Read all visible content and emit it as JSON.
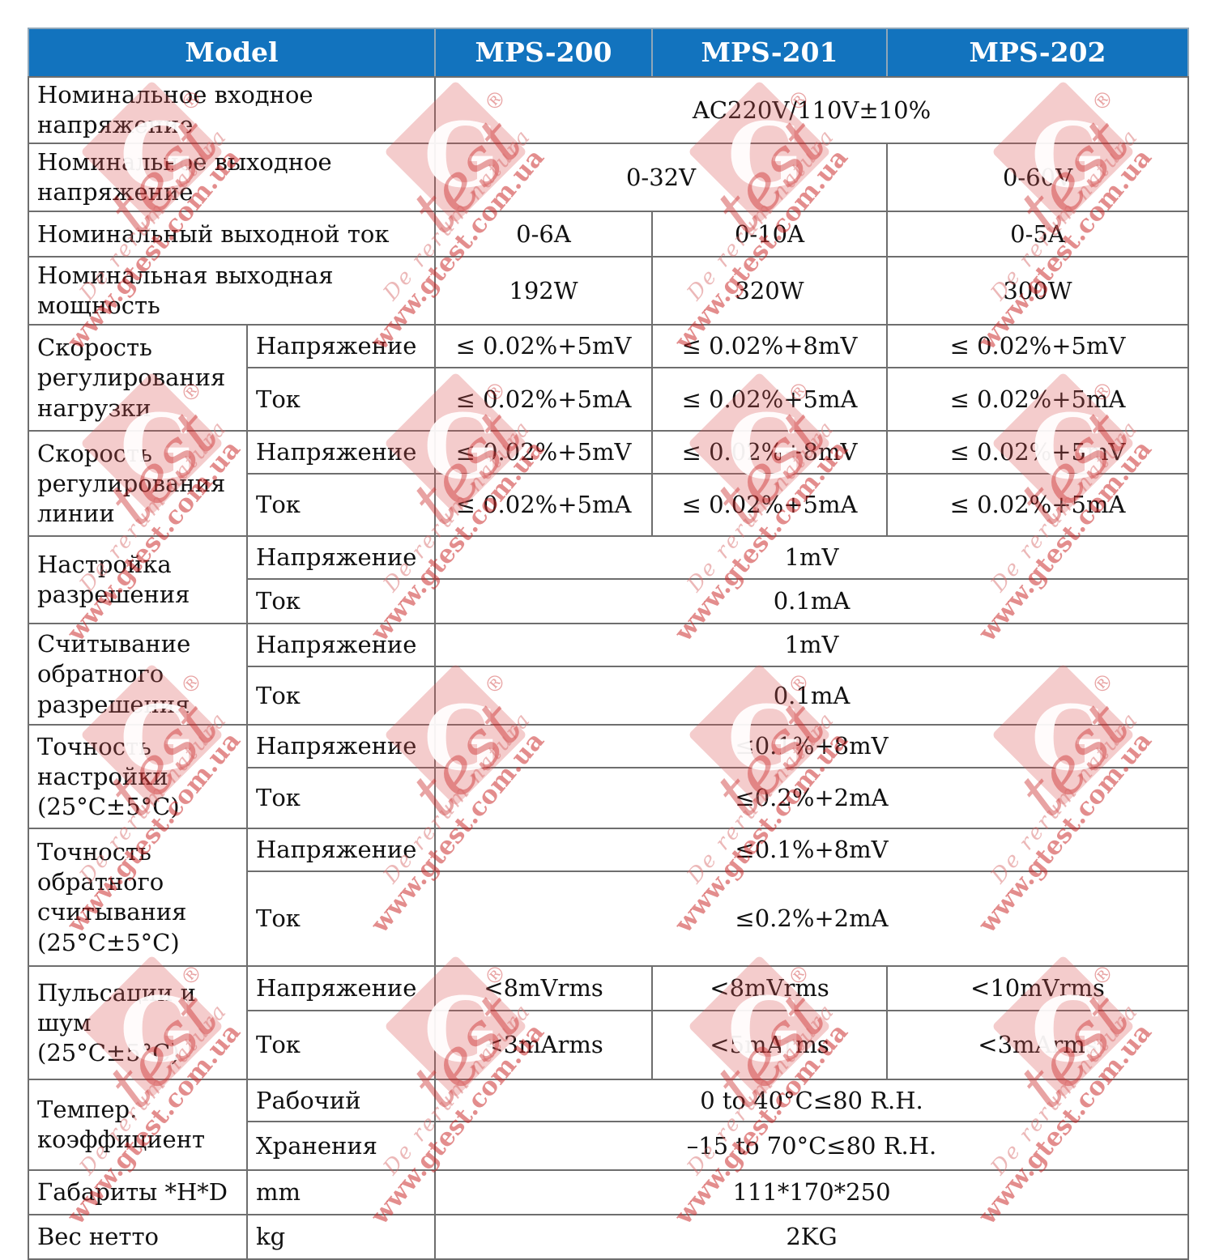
{
  "header": {
    "model": "Model",
    "m200": "MPS-200",
    "m201": "MPS-201",
    "m202": "MPS-202"
  },
  "sublabels": {
    "voltage": "Напряжение",
    "current": "Ток"
  },
  "rows": {
    "input_voltage": {
      "label": "Номинальное входное напряжение",
      "value": "AC220V/110V±10%"
    },
    "output_voltage": {
      "label": "Номинальное выходное напряжение",
      "v200_201": "0-32V",
      "v202": "0-60V"
    },
    "output_current": {
      "label": "Номинальный выходной ток",
      "v200": "0-6A",
      "v201": "0-10A",
      "v202": "0-5A"
    },
    "output_power": {
      "label": "Номинальная выходная мощность",
      "v200": "192W",
      "v201": "320W",
      "v202": "300W"
    },
    "load_regulation": {
      "label": "Скорость регулирования нагрузки",
      "voltage": {
        "v200": "≤ 0.02%+5mV",
        "v201": "≤ 0.02%+8mV",
        "v202": "≤ 0.02%+5mV"
      },
      "current": {
        "v200": "≤ 0.02%+5mA",
        "v201": "≤ 0.02%+5mA",
        "v202": "≤ 0.02%+5mA"
      }
    },
    "line_regulation": {
      "label": "Скорость регулирования линии",
      "voltage": {
        "v200": "≤ 0.02%+5mV",
        "v201": "≤ 0.02%+8mV",
        "v202": "≤ 0.02%+5mV"
      },
      "current": {
        "v200": "≤ 0.02%+5mA",
        "v201": "≤ 0.02%+5mA",
        "v202": "≤ 0.02%+5mA"
      }
    },
    "set_resolution": {
      "label": "Настройка разрешения",
      "voltage": "1mV",
      "current": "0.1mA"
    },
    "readback_resolution": {
      "label": "Считывание обратного разрешения",
      "voltage": "1mV",
      "current": "0.1mA"
    },
    "set_accuracy": {
      "label": "Точность настройки (25°C±5°C)",
      "voltage": "≤0.1%+8mV",
      "current": "≤0.2%+2mA"
    },
    "readback_accuracy": {
      "label": "Точность обратного считывания (25°C±5°C)",
      "voltage": "≤0.1%+8mV",
      "current": "≤0.2%+2mA"
    },
    "ripple_noise": {
      "label": "Пульсации и шум (25°C±5°C)",
      "voltage": {
        "v200": "<8mVrms",
        "v201": "<8mVrms",
        "v202": "<10mVrms"
      },
      "current": {
        "v200": "<3mArms",
        "v201": "<5mArms",
        "v202": "<3mArms"
      }
    },
    "temp_coefficient": {
      "label": "Темпер. коэффициент",
      "operating_label": "Рабочий",
      "storage_label": "Хранения",
      "operating": "0 to 40°C≤80 R.H.",
      "storage": "–15 to 70°C≤80 R.H."
    },
    "dimensions": {
      "label": "Габариты *H*D",
      "unit": "mm",
      "value": "111*170*250"
    },
    "net_weight": {
      "label": "Вес нетто",
      "unit": "kg",
      "value": "2KG"
    }
  },
  "watermark": {
    "g_letter": "G",
    "script": "test",
    "registered": "®",
    "motto": "De rerum natura",
    "url": "www.gtest.com.ua"
  },
  "colors": {
    "header_bg": "#1273be",
    "header_text": "#ffffff",
    "gray_cell": "#d8d8d8",
    "border": "#6e6e6e",
    "watermark_red": "#c92424"
  }
}
